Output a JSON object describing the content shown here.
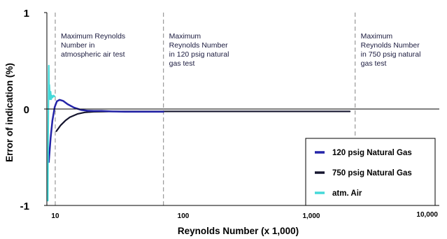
{
  "chart_data": {
    "type": "line",
    "ylabel": "Error of indication (%)",
    "xlabel": "Reynolds Number (x 1,000)",
    "xscale": "log",
    "xlim": [
      8.6,
      10000
    ],
    "ylim": [
      -1,
      1
    ],
    "x_tick_labels": [
      {
        "x": 10,
        "label": "10"
      },
      {
        "x": 100,
        "label": "100"
      },
      {
        "x": 1000,
        "label": "1,000"
      },
      {
        "x": 10000,
        "label": "10,000"
      }
    ],
    "y_tick_labels": [
      {
        "y": 1,
        "label": "1"
      },
      {
        "y": 0,
        "label": "0"
      },
      {
        "y": -1,
        "label": "-1"
      }
    ],
    "zero_line": true,
    "legend_position": "bottom-right",
    "colors": {
      "natural_gas_120": "#2424a8",
      "natural_gas_750": "#15152e",
      "atm_air": "#44d8d8",
      "reference_lines": "#999999"
    },
    "series": [
      {
        "name": "120 psig Natural Gas",
        "points": [
          [
            8.9,
            -0.55
          ],
          [
            9.2,
            -0.3
          ],
          [
            9.5,
            -0.12
          ],
          [
            9.9,
            0.02
          ],
          [
            10.3,
            0.08
          ],
          [
            10.8,
            0.095
          ],
          [
            11.5,
            0.085
          ],
          [
            12.5,
            0.05
          ],
          [
            14,
            0.015
          ],
          [
            16,
            -0.01
          ],
          [
            18,
            -0.018
          ],
          [
            20,
            -0.02
          ],
          [
            23,
            -0.02
          ],
          [
            28,
            -0.025
          ],
          [
            35,
            -0.028
          ],
          [
            50,
            -0.028
          ],
          [
            70,
            -0.028
          ]
        ]
      },
      {
        "name": "750 psig Natural Gas",
        "points": [
          [
            10.2,
            -0.23
          ],
          [
            11,
            -0.17
          ],
          [
            12,
            -0.12
          ],
          [
            13,
            -0.085
          ],
          [
            15,
            -0.05
          ],
          [
            17,
            -0.035
          ],
          [
            20,
            -0.028
          ],
          [
            30,
            -0.025
          ],
          [
            50,
            -0.025
          ],
          [
            100,
            -0.025
          ],
          [
            200,
            -0.025
          ],
          [
            500,
            -0.025
          ],
          [
            1000,
            -0.025
          ],
          [
            2000,
            -0.025
          ]
        ]
      },
      {
        "name": "atm. Air",
        "points": [
          [
            8.75,
            -0.95
          ],
          [
            8.8,
            -0.3
          ],
          [
            8.85,
            0.1
          ],
          [
            8.9,
            0.45
          ],
          [
            8.95,
            0.18
          ],
          [
            9.0,
            0.25
          ],
          [
            9.1,
            0.1
          ],
          [
            9.2,
            0.18
          ],
          [
            9.3,
            0.1
          ],
          [
            9.4,
            0.14
          ],
          [
            9.55,
            0.12
          ],
          [
            9.7,
            0.14
          ],
          [
            9.9,
            0.13
          ]
        ]
      }
    ],
    "annotations": [
      {
        "x": 10,
        "lines": [
          "Maximum Reynolds",
          "Number  in",
          "atmospheric air test"
        ]
      },
      {
        "x": 70,
        "lines": [
          "Maximum",
          "Reynolds Number",
          "in 120 psig natural",
          "gas test"
        ]
      },
      {
        "x": 2200,
        "lines": [
          "Maximum",
          "Reynolds Number",
          "in 750 psig natural",
          "gas test"
        ]
      }
    ]
  }
}
